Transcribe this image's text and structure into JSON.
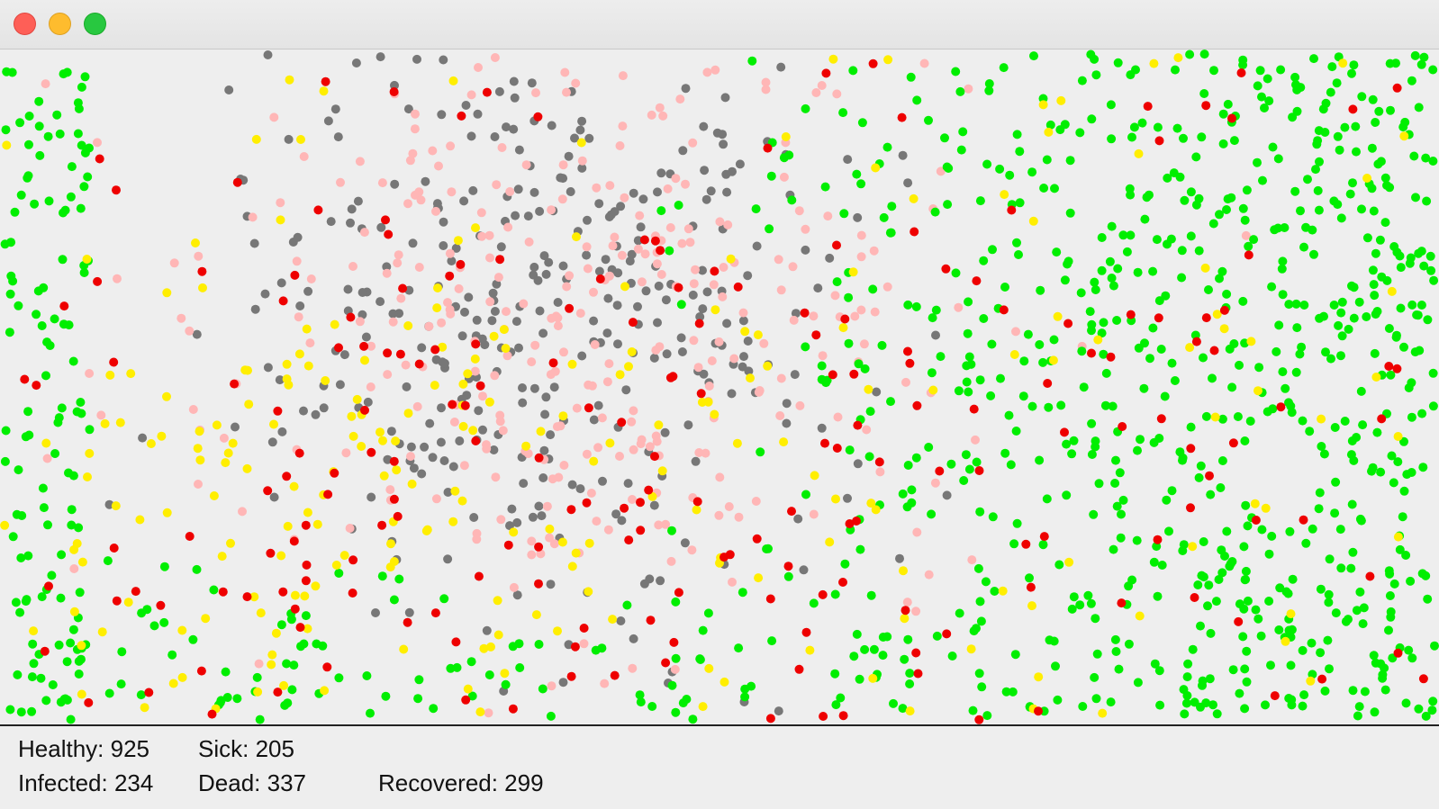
{
  "window": {
    "buttons": [
      "close",
      "minimize",
      "zoom"
    ]
  },
  "colors": {
    "healthy": "#00ee00",
    "infected": "#ffee00",
    "sick": "#ee0000",
    "dead": "#777777",
    "recovered": "#ffb6b6",
    "background": "#eeeeee"
  },
  "stats": {
    "healthy_label": "Healthy: 925",
    "sick_label": "Sick: 205",
    "infected_label": "Infected: 234",
    "dead_label": "Dead: 337",
    "recovered_label": "Recovered: 299"
  },
  "population": {
    "healthy": 925,
    "infected": 234,
    "sick": 205,
    "dead": 337,
    "recovered": 299
  }
}
